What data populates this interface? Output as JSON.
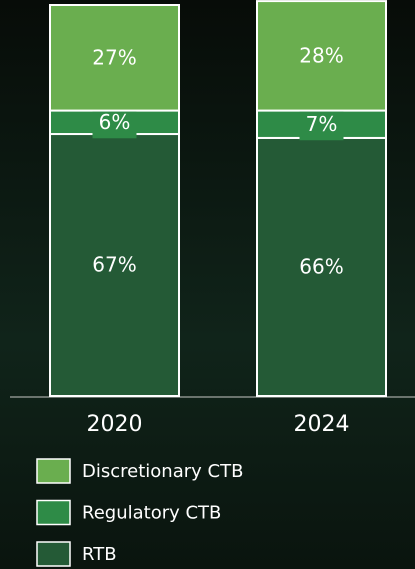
{
  "chart_data": {
    "type": "stacked_bar",
    "categories": [
      "2020",
      "2024"
    ],
    "ylim": [
      0,
      100
    ],
    "series": [
      {
        "name": "RTB",
        "color": "#245a36",
        "values": [
          67,
          66
        ],
        "value_labels": [
          "67%",
          "66%"
        ]
      },
      {
        "name": "Regulatory CTB",
        "color": "#2e8b47",
        "values": [
          6,
          7
        ],
        "value_labels": [
          "6%",
          "7%"
        ]
      },
      {
        "name": "Discretionary CTB",
        "color": "#6aae4f",
        "values": [
          27,
          28
        ],
        "value_labels": [
          "27%",
          "28%"
        ]
      }
    ]
  }
}
